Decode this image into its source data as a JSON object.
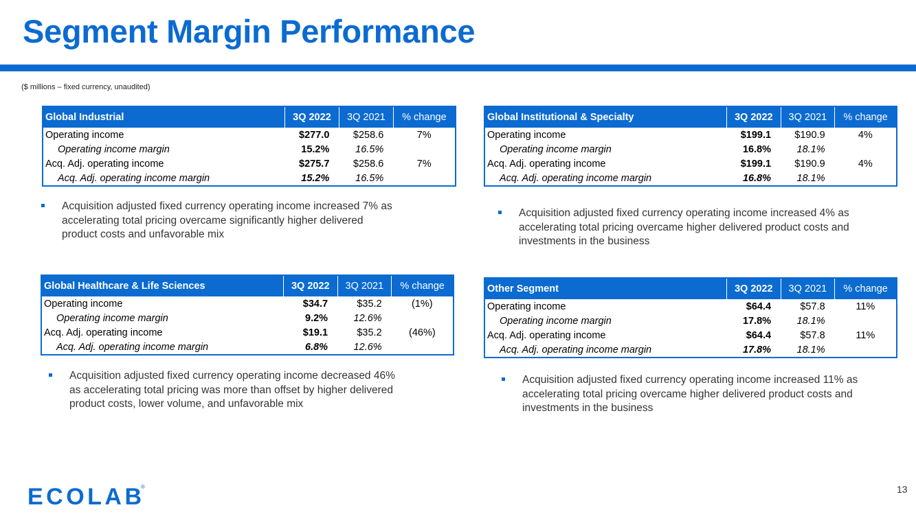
{
  "title": "Segment Margin Performance",
  "subtitle": "($ millions – fixed currency, unaudited)",
  "page_number": "13",
  "logo_text": "ECOLAB",
  "brand_color": "#0b6bd1",
  "segments": [
    {
      "name": "Global Industrial",
      "col_cur": "3Q 2022",
      "col_pri": "3Q 2021",
      "col_chg": "% change",
      "rows": [
        {
          "label": "Operating income",
          "cur": "$277.0",
          "pri": "$258.6",
          "chg": "7%"
        },
        {
          "label": "Operating income margin",
          "cur": "15.2%",
          "pri": "16.5%",
          "chg": ""
        },
        {
          "label": "Acq. Adj. operating income",
          "cur": "$275.7",
          "pri": "$258.6",
          "chg": "7%"
        },
        {
          "label": "Acq. Adj. operating income margin",
          "cur": "15.2%",
          "pri": "16.5%",
          "chg": ""
        }
      ],
      "bullet": "Acquisition adjusted fixed currency operating income increased 7% as accelerating total pricing overcame significantly higher delivered product costs and unfavorable mix"
    },
    {
      "name": "Global Institutional & Specialty",
      "col_cur": "3Q 2022",
      "col_pri": "3Q 2021",
      "col_chg": "% change",
      "rows": [
        {
          "label": "Operating income",
          "cur": "$199.1",
          "pri": "$190.9",
          "chg": "4%"
        },
        {
          "label": "Operating income margin",
          "cur": "16.8%",
          "pri": "18.1%",
          "chg": ""
        },
        {
          "label": "Acq. Adj. operating income",
          "cur": "$199.1",
          "pri": "$190.9",
          "chg": "4%"
        },
        {
          "label": "Acq. Adj. operating income margin",
          "cur": "16.8%",
          "pri": "18.1%",
          "chg": ""
        }
      ],
      "bullet": "Acquisition adjusted fixed currency operating income increased 4% as accelerating total pricing overcame higher delivered product costs and investments in the business"
    },
    {
      "name": "Global Healthcare & Life Sciences",
      "col_cur": "3Q 2022",
      "col_pri": "3Q 2021",
      "col_chg": "% change",
      "rows": [
        {
          "label": "Operating income",
          "cur": "$34.7",
          "pri": "$35.2",
          "chg": "(1%)"
        },
        {
          "label": "Operating income margin",
          "cur": "9.2%",
          "pri": "12.6%",
          "chg": ""
        },
        {
          "label": "Acq. Adj. operating income",
          "cur": "$19.1",
          "pri": "$35.2",
          "chg": "(46%)"
        },
        {
          "label": "Acq. Adj. operating income margin",
          "cur": "6.8%",
          "pri": "12.6%",
          "chg": ""
        }
      ],
      "bullet": "Acquisition adjusted fixed currency operating income decreased 46% as accelerating total pricing was more than offset by higher delivered product costs, lower volume, and unfavorable mix"
    },
    {
      "name": "Other Segment",
      "col_cur": "3Q 2022",
      "col_pri": "3Q 2021",
      "col_chg": "% change",
      "rows": [
        {
          "label": "Operating income",
          "cur": "$64.4",
          "pri": "$57.8",
          "chg": "11%"
        },
        {
          "label": "Operating income margin",
          "cur": "17.8%",
          "pri": "18.1%",
          "chg": ""
        },
        {
          "label": "Acq. Adj. operating income",
          "cur": "$64.4",
          "pri": "$57.8",
          "chg": "11%"
        },
        {
          "label": "Acq. Adj. operating income margin",
          "cur": "17.8%",
          "pri": "18.1%",
          "chg": ""
        }
      ],
      "bullet": "Acquisition adjusted fixed currency operating income increased 11% as accelerating total pricing overcame higher delivered product costs and investments in the business"
    }
  ]
}
